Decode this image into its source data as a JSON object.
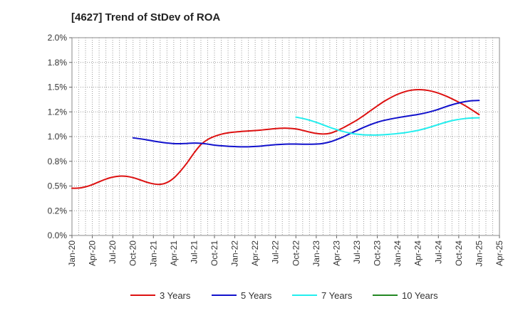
{
  "chart_data": {
    "type": "line",
    "title": "[4627]  Trend of StDev of ROA",
    "xlabel": "",
    "ylabel": "",
    "x_ticks": [
      "Jan-20",
      "Apr-20",
      "Jul-20",
      "Oct-20",
      "Jan-21",
      "Apr-21",
      "Jul-21",
      "Oct-21",
      "Jan-22",
      "Apr-22",
      "Jul-22",
      "Oct-22",
      "Jan-23",
      "Apr-23",
      "Jul-23",
      "Oct-23",
      "Jan-24",
      "Apr-24",
      "Jul-24",
      "Oct-24",
      "Jan-25",
      "Apr-25"
    ],
    "y_ticks": [
      "0.0%",
      "0.2%",
      "0.5%",
      "0.8%",
      "1.0%",
      "1.2%",
      "1.5%",
      "1.8%",
      "2.0%"
    ],
    "ylim": [
      0,
      2.0
    ],
    "grid": true,
    "legend_position": "bottom",
    "series": [
      {
        "name": "3 Years",
        "color": "#dd1111",
        "x": [
          "Jan-20",
          "Feb-20",
          "Mar-20",
          "Apr-20",
          "May-20",
          "Jun-20",
          "Jul-20",
          "Aug-20",
          "Sep-20",
          "Oct-20",
          "Nov-20",
          "Dec-20",
          "Jan-21",
          "Feb-21",
          "Mar-21",
          "Apr-21",
          "May-21",
          "Jun-21",
          "Jul-21",
          "Aug-21",
          "Sep-21",
          "Oct-21",
          "Nov-21",
          "Dec-21",
          "Jan-22",
          "Feb-22",
          "Mar-22",
          "Apr-22",
          "May-22",
          "Jun-22",
          "Jul-22",
          "Aug-22",
          "Sep-22",
          "Oct-22",
          "Nov-22",
          "Dec-22",
          "Jan-23",
          "Feb-23",
          "Mar-23",
          "Apr-23",
          "May-23",
          "Jun-23",
          "Jul-23",
          "Aug-23",
          "Sep-23",
          "Oct-23",
          "Nov-23",
          "Dec-23",
          "Jan-24",
          "Feb-24",
          "Mar-24",
          "Apr-24",
          "May-24",
          "Jun-24",
          "Jul-24",
          "Aug-24",
          "Sep-24",
          "Oct-24",
          "Nov-24",
          "Dec-24",
          "Jan-25"
        ],
        "values": [
          0.478,
          0.479,
          0.492,
          0.514,
          0.543,
          0.57,
          0.59,
          0.6,
          0.598,
          0.585,
          0.563,
          0.539,
          0.522,
          0.517,
          0.535,
          0.58,
          0.652,
          0.738,
          0.835,
          0.919,
          0.97,
          1.002,
          1.024,
          1.038,
          1.046,
          1.052,
          1.057,
          1.061,
          1.067,
          1.074,
          1.081,
          1.085,
          1.084,
          1.077,
          1.063,
          1.046,
          1.032,
          1.026,
          1.033,
          1.058,
          1.09,
          1.128,
          1.167,
          1.213,
          1.262,
          1.31,
          1.356,
          1.395,
          1.428,
          1.453,
          1.469,
          1.475,
          1.471,
          1.459,
          1.439,
          1.413,
          1.382,
          1.348,
          1.31,
          1.267,
          1.222
        ]
      },
      {
        "name": "5 Years",
        "color": "#1111cc",
        "x": [
          "Oct-20",
          "Nov-20",
          "Dec-20",
          "Jan-21",
          "Feb-21",
          "Mar-21",
          "Apr-21",
          "May-21",
          "Jun-21",
          "Jul-21",
          "Aug-21",
          "Sep-21",
          "Oct-21",
          "Nov-21",
          "Dec-21",
          "Jan-22",
          "Feb-22",
          "Mar-22",
          "Apr-22",
          "May-22",
          "Jun-22",
          "Jul-22",
          "Aug-22",
          "Sep-22",
          "Oct-22",
          "Nov-22",
          "Dec-22",
          "Jan-23",
          "Feb-23",
          "Mar-23",
          "Apr-23",
          "May-23",
          "Jun-23",
          "Jul-23",
          "Aug-23",
          "Sep-23",
          "Oct-23",
          "Nov-23",
          "Dec-23",
          "Jan-24",
          "Feb-24",
          "Mar-24",
          "Apr-24",
          "May-24",
          "Jun-24",
          "Jul-24",
          "Aug-24",
          "Sep-24",
          "Oct-24",
          "Nov-24",
          "Dec-24",
          "Jan-25"
        ],
        "values": [
          0.987,
          0.978,
          0.967,
          0.955,
          0.944,
          0.935,
          0.929,
          0.928,
          0.931,
          0.934,
          0.932,
          0.924,
          0.914,
          0.907,
          0.902,
          0.899,
          0.897,
          0.897,
          0.9,
          0.905,
          0.912,
          0.918,
          0.922,
          0.924,
          0.924,
          0.923,
          0.923,
          0.924,
          0.931,
          0.946,
          0.97,
          0.998,
          1.03,
          1.062,
          1.093,
          1.121,
          1.145,
          1.164,
          1.178,
          1.191,
          1.202,
          1.213,
          1.224,
          1.238,
          1.255,
          1.276,
          1.3,
          1.322,
          1.34,
          1.354,
          1.363,
          1.366
        ]
      },
      {
        "name": "7 Years",
        "color": "#22eeee",
        "x": [
          "Oct-22",
          "Nov-22",
          "Dec-22",
          "Jan-23",
          "Feb-23",
          "Mar-23",
          "Apr-23",
          "May-23",
          "Jun-23",
          "Jul-23",
          "Aug-23",
          "Sep-23",
          "Oct-23",
          "Nov-23",
          "Dec-23",
          "Jan-24",
          "Feb-24",
          "Mar-24",
          "Apr-24",
          "May-24",
          "Jun-24",
          "Jul-24",
          "Aug-24",
          "Sep-24",
          "Oct-24",
          "Nov-24",
          "Dec-24",
          "Jan-25"
        ],
        "values": [
          1.197,
          1.183,
          1.166,
          1.144,
          1.119,
          1.093,
          1.071,
          1.051,
          1.035,
          1.024,
          1.018,
          1.016,
          1.016,
          1.019,
          1.024,
          1.031,
          1.039,
          1.05,
          1.063,
          1.08,
          1.1,
          1.122,
          1.143,
          1.161,
          1.174,
          1.183,
          1.188,
          1.19
        ]
      },
      {
        "name": "10 Years",
        "color": "#228822",
        "x": [],
        "values": []
      }
    ]
  }
}
